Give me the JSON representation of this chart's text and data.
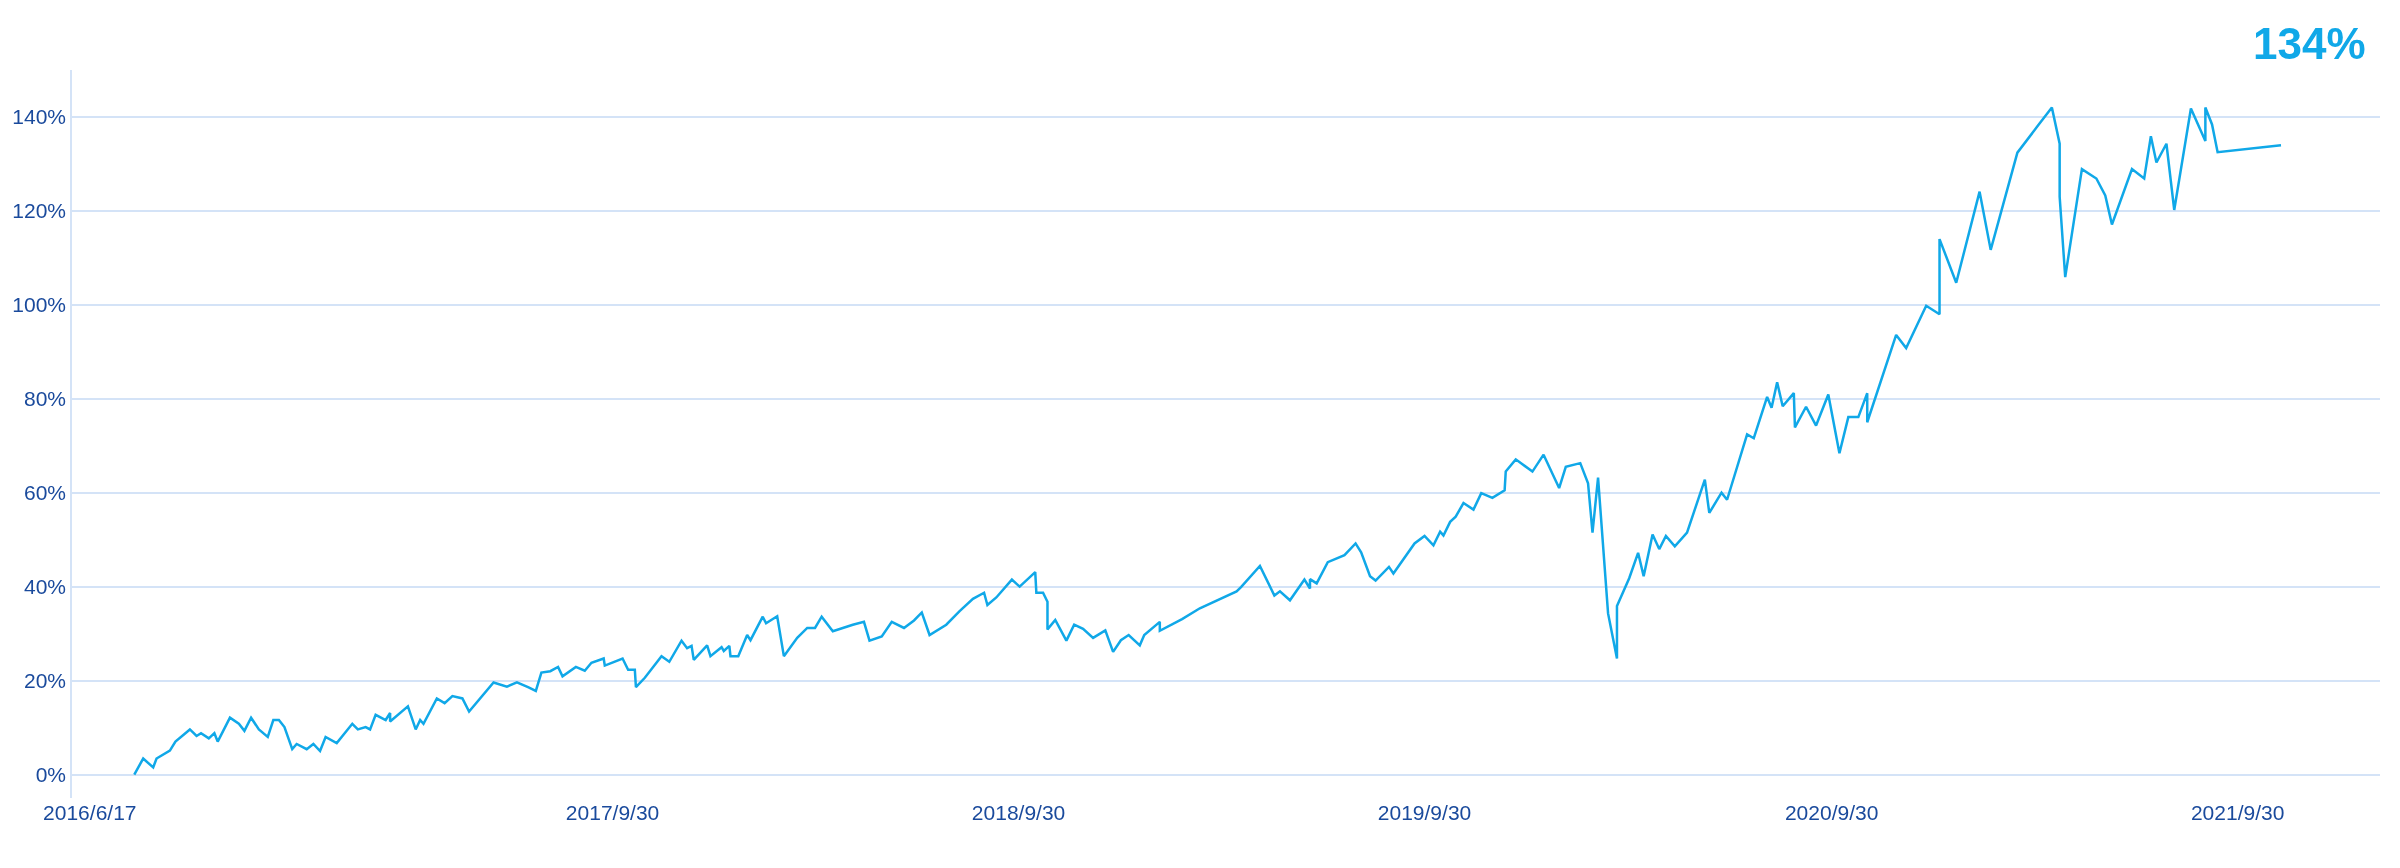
{
  "chart_data": {
    "type": "line",
    "x": [
      "2016-07-27",
      "2016-08-04",
      "2016-08-13",
      "2016-08-16",
      "2016-08-28",
      "2016-09-02",
      "2016-09-15",
      "2016-09-21",
      "2016-09-25",
      "2016-10-02",
      "2016-10-07",
      "2016-10-10",
      "2016-10-21",
      "2016-10-29",
      "2016-11-03",
      "2016-11-09",
      "2016-11-16",
      "2016-11-24",
      "2016-11-29",
      "2016-12-04",
      "2016-12-09",
      "2016-12-16",
      "2016-12-20",
      "2016-12-29",
      "2017-01-04",
      "2017-01-10",
      "2017-01-15",
      "2017-01-25",
      "2017-02-08",
      "2017-02-13",
      "2017-02-20",
      "2017-02-24",
      "2017-03-01",
      "2017-03-10",
      "2017-03-14",
      "2017-03-14",
      "2017-03-30",
      "2017-04-06",
      "2017-04-10",
      "2017-04-13",
      "2017-04-25",
      "2017-05-02",
      "2017-05-09",
      "2017-05-18",
      "2017-05-24",
      "2017-06-15",
      "2017-06-27",
      "2017-07-06",
      "2017-07-16",
      "2017-07-23",
      "2017-07-28",
      "2017-08-05",
      "2017-08-12",
      "2017-08-16",
      "2017-08-28",
      "2017-09-05",
      "2017-09-11",
      "2017-09-22",
      "2017-09-23",
      "2017-10-09",
      "2017-10-14",
      "2017-10-20",
      "2017-10-21",
      "2017-10-29",
      "2017-11-13",
      "2017-11-20",
      "2017-12-01",
      "2017-12-06",
      "2017-12-10",
      "2017-12-12",
      "2017-12-24",
      "2017-12-27",
      "2018-01-06",
      "2018-01-08",
      "2018-01-13",
      "2018-01-14",
      "2018-01-21",
      "2018-01-29",
      "2018-02-01",
      "2018-02-12",
      "2018-02-15",
      "2018-02-25",
      "2018-03-03",
      "2018-03-15",
      "2018-03-24",
      "2018-03-31",
      "2018-04-06",
      "2018-04-16",
      "2018-05-04",
      "2018-05-14",
      "2018-05-19",
      "2018-05-30",
      "2018-06-08",
      "2018-06-19",
      "2018-06-28",
      "2018-07-05",
      "2018-07-12",
      "2018-07-27",
      "2018-08-08",
      "2018-08-20",
      "2018-08-30",
      "2018-09-02",
      "2018-09-10",
      "2018-09-24",
      "2018-10-01",
      "2018-10-15",
      "2018-10-16",
      "2018-10-22",
      "2018-10-26",
      "2018-10-26",
      "2018-11-02",
      "2018-11-12",
      "2018-11-19",
      "2018-11-27",
      "2018-12-06",
      "2018-12-17",
      "2018-12-24",
      "2018-12-31",
      "2019-01-07",
      "2019-01-17",
      "2019-01-21",
      "2019-02-04",
      "2019-02-04",
      "2019-02-24",
      "2019-03-12",
      "2019-04-14",
      "2019-04-18",
      "2019-05-05",
      "2019-05-18",
      "2019-05-23",
      "2019-06-01",
      "2019-06-14",
      "2019-06-19",
      "2019-06-19",
      "2019-06-25",
      "2019-07-05",
      "2019-07-20",
      "2019-07-30",
      "2019-08-04",
      "2019-08-12",
      "2019-08-17",
      "2019-08-29",
      "2019-09-02",
      "2019-09-21",
      "2019-09-30",
      "2019-10-08",
      "2019-10-14",
      "2019-10-17",
      "2019-10-23",
      "2019-10-28",
      "2019-11-04",
      "2019-11-13",
      "2019-11-20",
      "2019-11-30",
      "2019-12-11",
      "2019-12-12",
      "2019-12-21",
      "2020-01-05",
      "2020-01-15",
      "2020-01-29",
      "2020-02-04",
      "2020-02-17",
      "2020-02-24",
      "2020-02-28",
      "2020-03-04",
      "2020-03-13",
      "2020-03-21",
      "2020-03-21",
      "2020-04-01",
      "2020-04-09",
      "2020-04-14",
      "2020-04-22",
      "2020-04-28",
      "2020-05-04",
      "2020-05-12",
      "2020-05-23",
      "2020-06-08",
      "2020-06-12",
      "2020-06-23",
      "2020-06-28",
      "2020-07-16",
      "2020-07-22",
      "2020-08-03",
      "2020-08-07",
      "2020-08-12",
      "2020-08-17",
      "2020-08-27",
      "2020-08-28",
      "2020-09-07",
      "2020-09-16",
      "2020-09-27",
      "2020-10-07",
      "2020-10-15",
      "2020-10-24",
      "2020-11-01",
      "2020-11-01",
      "2020-11-27",
      "2020-12-06",
      "2020-12-24",
      "2021-01-05",
      "2021-01-05",
      "2021-01-20",
      "2021-02-10",
      "2021-02-20",
      "2021-03-16",
      "2021-04-03",
      "2021-04-16",
      "2021-04-23",
      "2021-04-23",
      "2021-04-28",
      "2021-05-13",
      "2021-05-26",
      "2021-06-03",
      "2021-06-09",
      "2021-06-27",
      "2021-07-08",
      "2021-07-14",
      "2021-07-19",
      "2021-07-28",
      "2021-08-04",
      "2021-08-19",
      "2021-09-01",
      "2021-09-01",
      "2021-09-07",
      "2021-09-12",
      "2021-11-08"
    ],
    "series": [
      {
        "color": "#10a8e8",
        "values": [
          0,
          3.4,
          1.5,
          3.4,
          5.1,
          7.0,
          9.6,
          8.2,
          8.8,
          7.7,
          8.8,
          7.0,
          12.1,
          10.8,
          9.3,
          12.1,
          9.6,
          8.0,
          11.6,
          11.6,
          10.1,
          5.4,
          6.5,
          5.4,
          6.5,
          5.0,
          8.0,
          6.7,
          10.8,
          9.6,
          10.1,
          9.6,
          12.7,
          11.6,
          13.1,
          11.3,
          14.5,
          9.6,
          11.6,
          10.8,
          16.2,
          15.2,
          16.7,
          16.2,
          13.4,
          19.6,
          18.7,
          19.6,
          18.6,
          17.8,
          21.7,
          22.0,
          22.9,
          20.9,
          22.9,
          22.1,
          23.8,
          24.7,
          23.2,
          24.7,
          22.3,
          22.3,
          18.6,
          20.6,
          25.2,
          24.0,
          28.5,
          26.9,
          27.4,
          24.4,
          27.5,
          25.2,
          27.1,
          26.3,
          27.4,
          25.2,
          25.2,
          29.7,
          28.6,
          33.6,
          32.2,
          33.7,
          25.2,
          29.1,
          31.2,
          31.2,
          33.6,
          30.5,
          31.9,
          32.5,
          28.5,
          29.4,
          32.5,
          31.2,
          32.8,
          34.5,
          29.7,
          31.9,
          34.8,
          37.4,
          38.7,
          36.1,
          37.7,
          41.5,
          40.0,
          43.1,
          38.7,
          38.7,
          36.8,
          30.9,
          32.9,
          28.5,
          31.9,
          31.0,
          29.1,
          30.7,
          26.1,
          28.6,
          29.7,
          27.5,
          29.7,
          32.5,
          30.6,
          33.1,
          35.4,
          39.0,
          39.9,
          44.4,
          38.1,
          39.0,
          37.1,
          41.5,
          39.6,
          41.6,
          40.7,
          45.2,
          46.7,
          49.2,
          47.3,
          42.2,
          41.3,
          44.2,
          42.8,
          49.2,
          50.8,
          48.8,
          51.7,
          50.9,
          53.8,
          54.9,
          57.8,
          56.4,
          59.9,
          58.9,
          60.5,
          64.5,
          67.1,
          64.5,
          68.1,
          61.0,
          65.5,
          66.3,
          62.0,
          51.5,
          63.2,
          34.3,
          24.7,
          35.9,
          41.8,
          47.2,
          42.2,
          51.1,
          48.0,
          50.8,
          48.6,
          51.5,
          62.8,
          55.7,
          60.0,
          58.5,
          72.4,
          71.6,
          80.4,
          78.1,
          83.5,
          78.4,
          81.2,
          73.9,
          78.3,
          74.3,
          80.9,
          68.4,
          76.1,
          76.1,
          81.2,
          75.0,
          93.6,
          90.8,
          99.8,
          98.0,
          114.0,
          104.7,
          124.1,
          111.7,
          132.4,
          138.0,
          142.0,
          134.3,
          123.0,
          105.9,
          128.9,
          126.9,
          123.3,
          117.1,
          128.9,
          126.9,
          135.9,
          130.3,
          134.3,
          120.2,
          141.8,
          134.9,
          142.0,
          138.4,
          132.5,
          134.0
        ]
      }
    ],
    "xlim": [
      "2016-06-01",
      "2022-02-05"
    ],
    "xticks": [
      {
        "value": "2016-06-17",
        "label": "2016/6/17"
      },
      {
        "value": "2017-09-30",
        "label": "2017/9/30"
      },
      {
        "value": "2018-09-30",
        "label": "2018/9/30"
      },
      {
        "value": "2019-09-30",
        "label": "2019/9/30"
      },
      {
        "value": "2020-09-30",
        "label": "2020/9/30"
      },
      {
        "value": "2021-09-30",
        "label": "2021/9/30"
      }
    ],
    "ylim": [
      -5,
      150
    ],
    "yticks": [
      {
        "value": 0,
        "label": "0%"
      },
      {
        "value": 20,
        "label": "20%"
      },
      {
        "value": 40,
        "label": "40%"
      },
      {
        "value": 60,
        "label": "60%"
      },
      {
        "value": 80,
        "label": "80%"
      },
      {
        "value": 100,
        "label": "100%"
      },
      {
        "value": 120,
        "label": "120%"
      },
      {
        "value": 140,
        "label": "140%"
      }
    ],
    "annotations": [
      "134%"
    ],
    "grid": "y",
    "marker": "none",
    "line_style": "solid"
  }
}
